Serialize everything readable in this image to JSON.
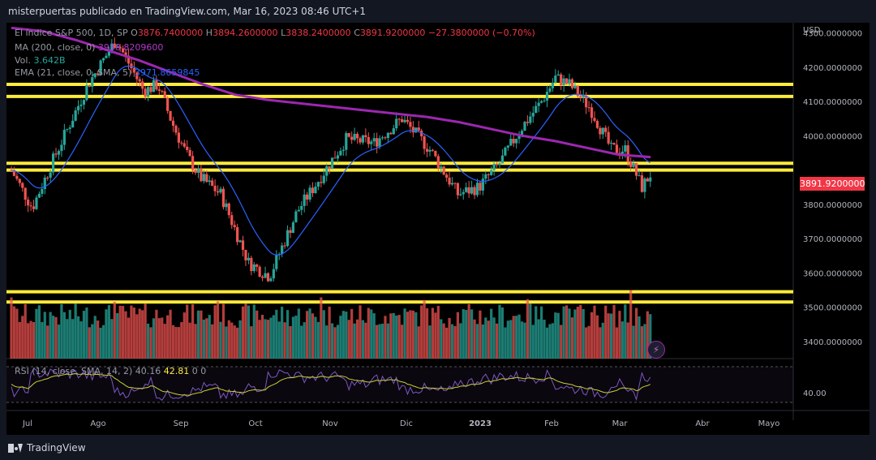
{
  "header": {
    "publisher": "misterpuertas publicado en TradingView.com, Mar 16, 2023 08:46 UTC+1"
  },
  "legend": {
    "symbol": "El índice S&P 500, 1D, SP",
    "o_label": "O",
    "o": "3876.7400000",
    "h_label": "H",
    "h": "3894.2600000",
    "l_label": "L",
    "l": "3838.2400000",
    "c_label": "C",
    "c": "3891.9200000",
    "change": "−27.3800000 (−0.70%)",
    "ma_label": "MA (200, close, 0)",
    "ma_value": "3938.8209600",
    "vol_label": "Vol.",
    "vol_value": "3.642B",
    "ema_label": "EMA (21, close, 0, SMA, 5)",
    "ema_value": "3971.8659845"
  },
  "rsi": {
    "label": "RSI (14, close, SMA, 14, 2)",
    "params": "40.16",
    "value": "42.81",
    "extra": "0 0",
    "tick": "40.00"
  },
  "footer": {
    "brand": "TradingView"
  },
  "chart_data": {
    "type": "candlestick",
    "currency": "USD",
    "last_price": "3891.9200000",
    "y_ticks": [
      "4300.0000000",
      "4200.0000000",
      "4100.0000000",
      "4000.0000000",
      "3800.0000000",
      "3700.0000000",
      "3600.0000000",
      "3500.0000000",
      "3400.0000000"
    ],
    "ylim": [
      3350,
      4330
    ],
    "x_ticks": [
      "Jul",
      "Ago",
      "Sep",
      "Oct",
      "Nov",
      "Dic",
      "2023",
      "Feb",
      "Mar",
      "Abr",
      "Mayo"
    ],
    "horizontal_levels": [
      4150,
      4115,
      3920,
      3900,
      3545,
      3515
    ],
    "colors": {
      "up": "#26a69a",
      "down": "#ef5350",
      "ma": "#9c27b0",
      "ema": "#2962ff",
      "levels": "#ffeb3b",
      "rsi": "#7e57c2",
      "rsi_ma": "#c9d130"
    },
    "series": [
      {
        "name": "MA (200)",
        "kind": "line",
        "x": [
          0,
          20,
          40,
          60,
          80,
          100,
          120,
          140,
          160,
          180,
          200,
          220,
          240,
          260,
          280,
          300,
          320,
          340,
          360,
          380,
          400
        ],
        "values": [
          4315,
          4305,
          4280,
          4250,
          4220,
          4185,
          4150,
          4120,
          4105,
          4095,
          4085,
          4075,
          4065,
          4055,
          4040,
          4020,
          4000,
          3985,
          3965,
          3945,
          3938
        ]
      }
    ]
  }
}
